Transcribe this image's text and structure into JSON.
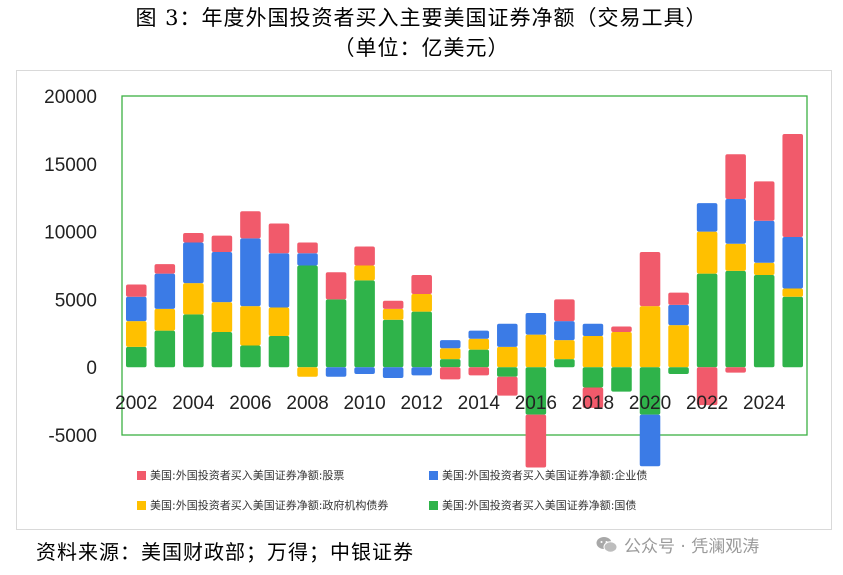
{
  "header": {
    "title": "图 3：年度外国投资者买入主要美国证券净额（交易工具）",
    "subtitle": "（单位：亿美元）"
  },
  "footer": {
    "source": "资料来源：美国财政部；万得；中银证券",
    "watermark": "公众号 · 凭澜观涛"
  },
  "colors": {
    "stocks": "#f15a6b",
    "corporate": "#3b7be6",
    "agency": "#ffc000",
    "treasury": "#2fb34a",
    "plot_border": "#3cb043"
  },
  "chart_data": {
    "type": "bar",
    "stacked": true,
    "years": [
      2002,
      2003,
      2004,
      2005,
      2006,
      2007,
      2008,
      2009,
      2010,
      2011,
      2012,
      2013,
      2014,
      2015,
      2016,
      2017,
      2018,
      2019,
      2020,
      2021,
      2022,
      2023,
      2024,
      2025
    ],
    "x_tick_labels": [
      "2002",
      "2004",
      "2006",
      "2008",
      "2010",
      "2012",
      "2014",
      "2016",
      "2018",
      "2020",
      "2022",
      "2024"
    ],
    "y_tick_labels": [
      "20000",
      "15000",
      "10000",
      "5000",
      "0",
      "-5000"
    ],
    "ylim": [
      -5000,
      20000
    ],
    "legend_position": "bottom",
    "series": [
      {
        "name": "美国:外国投资者买入美国证券净额:股票",
        "color_key": "stocks",
        "values": [
          900,
          700,
          700,
          1200,
          2000,
          2200,
          800,
          2000,
          1400,
          600,
          1400,
          0,
          0,
          0,
          0,
          0,
          0,
          0,
          0,
          0,
          0,
          0,
          0,
          0
        ]
      },
      {
        "name": "美国:外国投资者买入美国证券净额:企业债",
        "color_key": "corporate",
        "values": [
          1800,
          2600,
          3000,
          3700,
          5000,
          4000,
          900,
          0,
          0,
          0,
          0,
          600,
          600,
          1700,
          1600,
          1400,
          900,
          0,
          0,
          0,
          0,
          0,
          0,
          0
        ]
      },
      {
        "name": "美国:外国投资者买入美国证券净额:政府机构债券",
        "color_key": "agency",
        "values": [
          1900,
          1600,
          2300,
          2200,
          2900,
          2100,
          0,
          0,
          1100,
          800,
          1300,
          800,
          800,
          1500,
          2400,
          1400,
          2300,
          2600,
          4500,
          3100,
          3100,
          2000,
          900,
          600
        ]
      },
      {
        "name": "美国:外国投资者买入美国证券净额:国债",
        "color_key": "treasury",
        "values": [
          1500,
          2700,
          3900,
          2600,
          1600,
          2300,
          7500,
          5000,
          6400,
          3500,
          4100,
          600,
          1300,
          0,
          0,
          600,
          0,
          0,
          0,
          0,
          6900,
          7100,
          6800,
          5200
        ]
      }
    ],
    "negatives": [
      {
        "series": "stocks",
        "values": [
          0,
          0,
          0,
          0,
          0,
          0,
          0,
          0,
          0,
          0,
          0,
          -900,
          -600,
          -1400,
          -3900,
          0,
          -1500,
          0,
          0,
          0,
          -2800,
          -400,
          0,
          0
        ]
      },
      {
        "series": "corporate",
        "values": [
          0,
          0,
          0,
          0,
          0,
          0,
          0,
          -700,
          -500,
          -800,
          -600,
          0,
          0,
          0,
          0,
          0,
          0,
          0,
          -3800,
          0,
          0,
          0,
          0,
          0
        ]
      },
      {
        "series": "agency",
        "values": [
          0,
          0,
          0,
          0,
          0,
          0,
          -700,
          0,
          0,
          0,
          0,
          0,
          0,
          0,
          0,
          0,
          0,
          0,
          0,
          0,
          0,
          0,
          0,
          0
        ]
      },
      {
        "series": "treasury",
        "values": [
          0,
          0,
          0,
          0,
          0,
          0,
          0,
          0,
          0,
          0,
          0,
          0,
          0,
          -700,
          -3500,
          0,
          -1500,
          -1800,
          -3500,
          -500,
          0,
          0,
          0,
          0
        ]
      }
    ],
    "extra_positive": [
      {
        "series": "stocks",
        "values": [
          0,
          0,
          0,
          0,
          0,
          0,
          0,
          0,
          0,
          0,
          0,
          0,
          0,
          0,
          0,
          1600,
          0,
          400,
          4000,
          900,
          0,
          3300,
          2900,
          7600
        ]
      },
      {
        "series": "corporate",
        "values": [
          0,
          0,
          0,
          0,
          0,
          0,
          0,
          0,
          0,
          0,
          0,
          0,
          0,
          0,
          0,
          0,
          0,
          0,
          0,
          1500,
          2100,
          3300,
          3100,
          3800
        ]
      }
    ]
  }
}
